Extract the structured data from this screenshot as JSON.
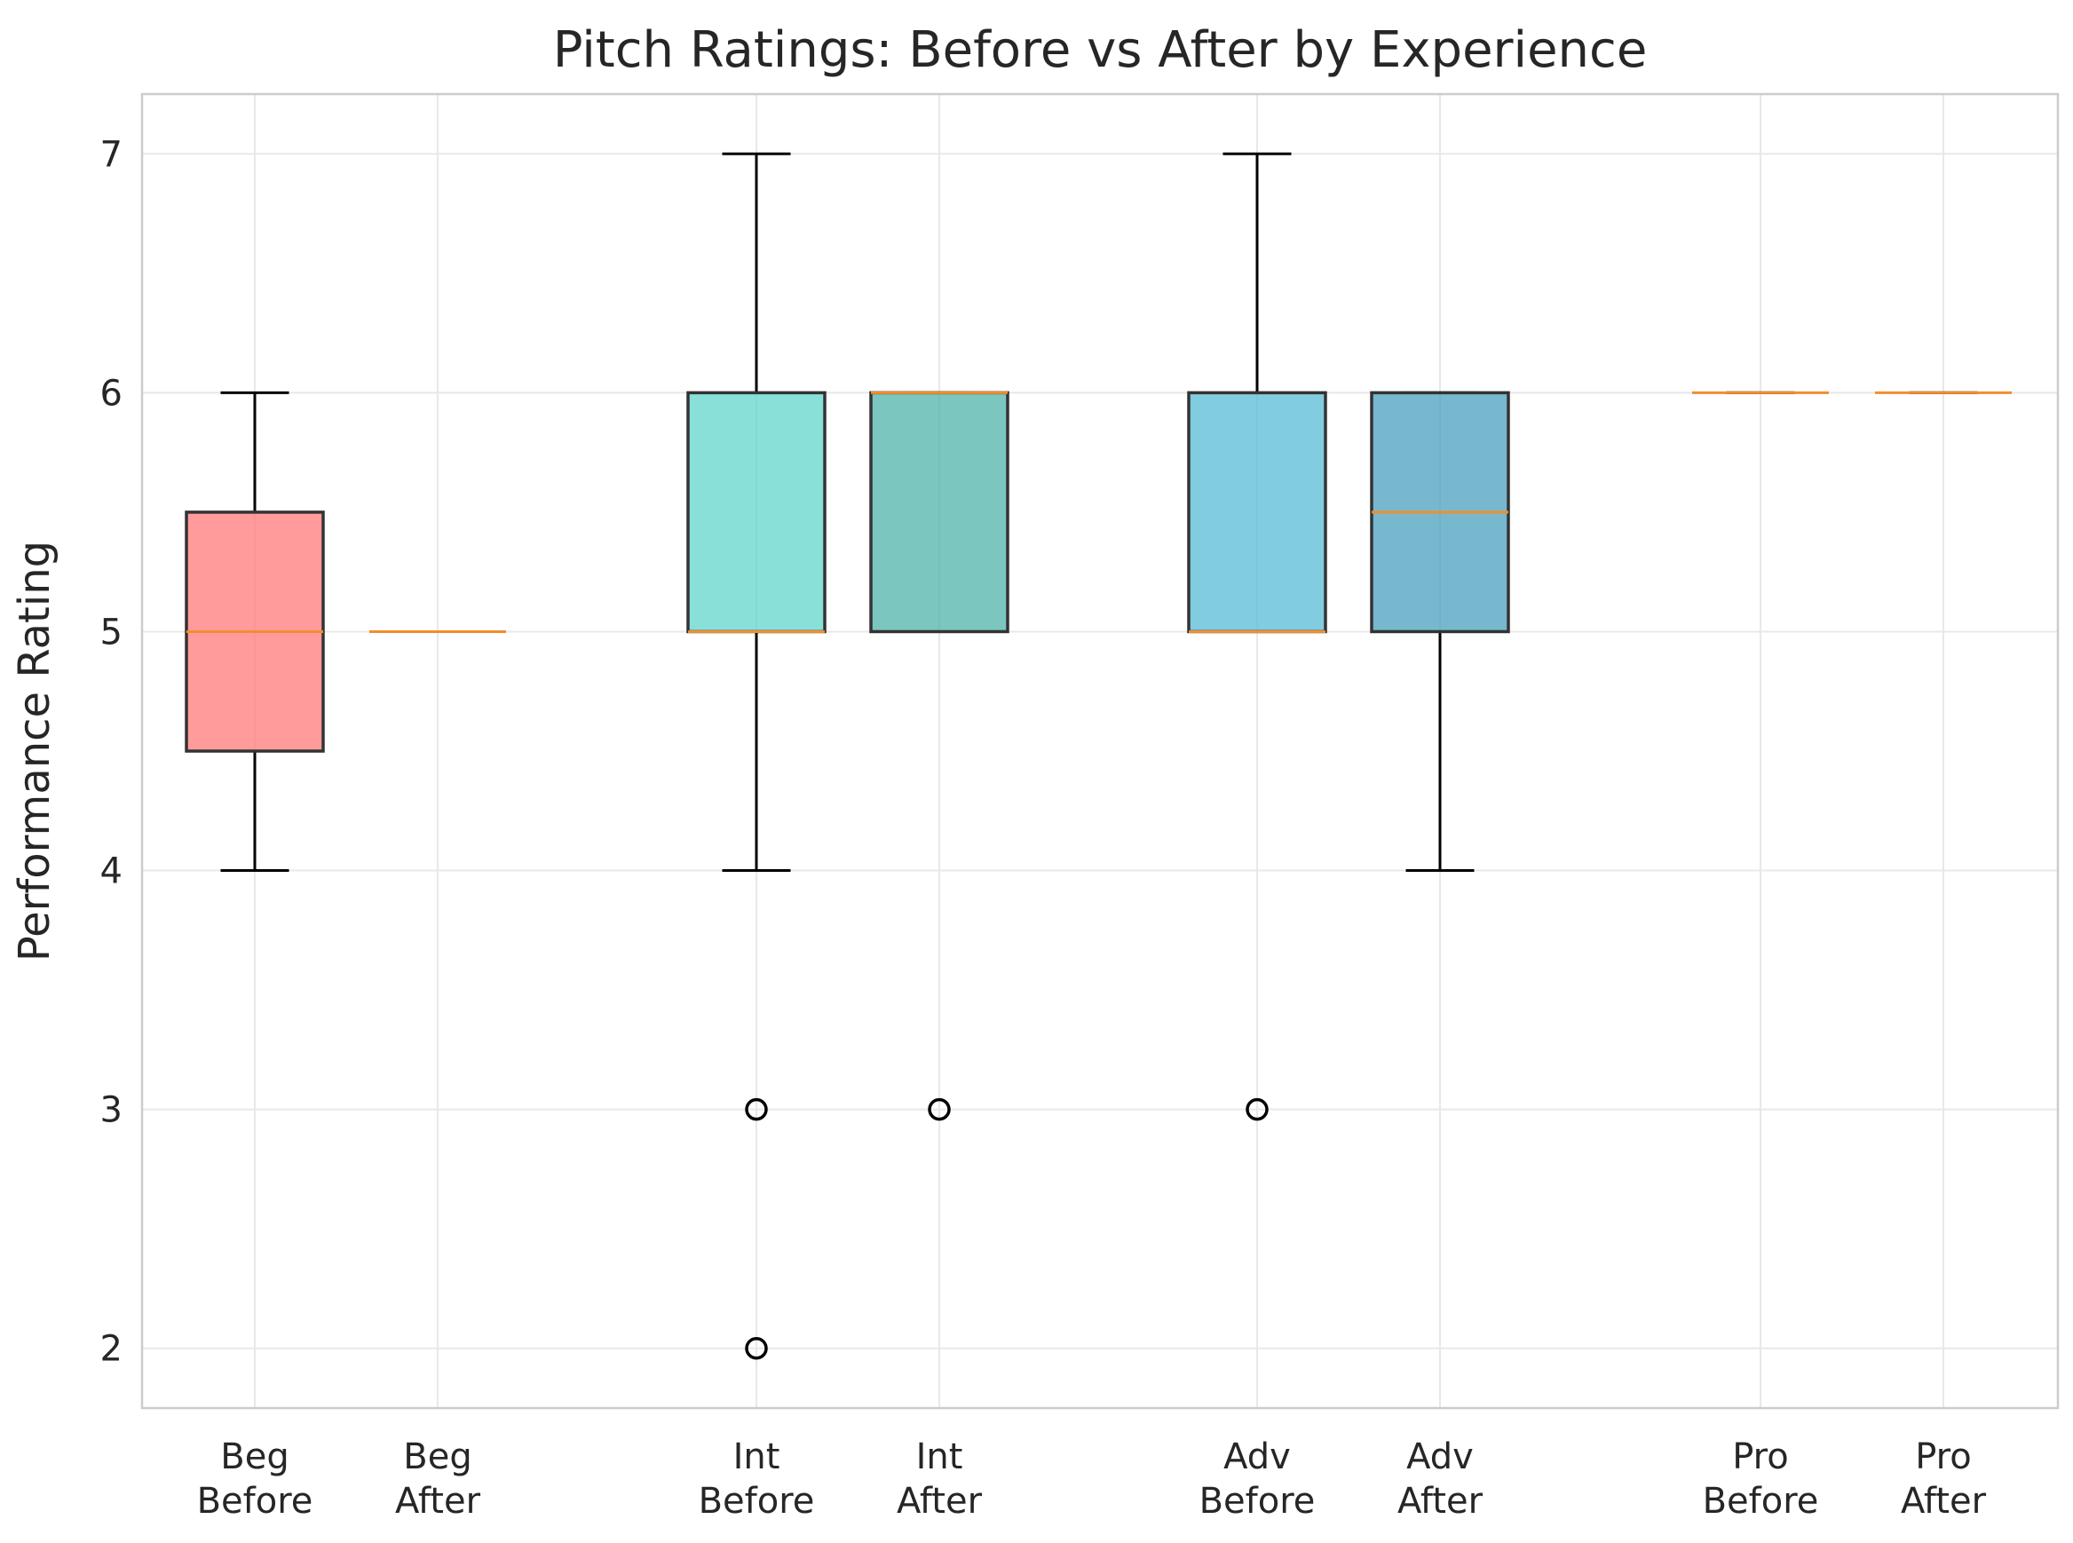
{
  "chart_data": {
    "type": "boxplot",
    "title": "Pitch Ratings: Before vs After by Experience",
    "ylabel": "Performance Rating",
    "xlabel": "",
    "ylim": [
      1.75,
      7.25
    ],
    "yticks": [
      2,
      3,
      4,
      5,
      6,
      7
    ],
    "grid": true,
    "legend": "none",
    "colors": {
      "median": "#f28e2b",
      "box_edge": "#333333",
      "grid": "#e8e8e8",
      "frame": "#cccccc"
    },
    "boxes": [
      {
        "label": [
          "Beg",
          "Before"
        ],
        "group": 0,
        "slot": 0,
        "color": "#ff7a7a",
        "whisker_low": 4,
        "q1": 4.5,
        "median": 5,
        "q3": 5.5,
        "whisker_high": 6,
        "outliers": []
      },
      {
        "label": [
          "Beg",
          "After"
        ],
        "group": 0,
        "slot": 1,
        "color": "#e85c5c",
        "whisker_low": 5,
        "q1": 5,
        "median": 5,
        "q3": 5,
        "whisker_high": 5,
        "outliers": []
      },
      {
        "label": [
          "Int",
          "Before"
        ],
        "group": 1,
        "slot": 0,
        "color": "#62d6cc",
        "whisker_low": 4,
        "q1": 5,
        "median": 5,
        "q3": 6,
        "whisker_high": 7,
        "outliers": [
          3,
          2
        ]
      },
      {
        "label": [
          "Int",
          "After"
        ],
        "group": 1,
        "slot": 1,
        "color": "#4fb3a9",
        "whisker_low": 5,
        "q1": 5,
        "median": 6,
        "q3": 6,
        "whisker_high": 6,
        "outliers": [
          3
        ]
      },
      {
        "label": [
          "Adv",
          "Before"
        ],
        "group": 2,
        "slot": 0,
        "color": "#58bbd6",
        "whisker_low": 5,
        "q1": 5,
        "median": 5,
        "q3": 6,
        "whisker_high": 7,
        "outliers": [
          3
        ]
      },
      {
        "label": [
          "Adv",
          "After"
        ],
        "group": 2,
        "slot": 1,
        "color": "#4aa0bd",
        "whisker_low": 4,
        "q1": 5,
        "median": 5.5,
        "q3": 6,
        "whisker_high": 6,
        "outliers": []
      },
      {
        "label": [
          "Pro",
          "Before"
        ],
        "group": 3,
        "slot": 0,
        "color": "#8fc9a8",
        "whisker_low": 6,
        "q1": 6,
        "median": 6,
        "q3": 6,
        "whisker_high": 6,
        "outliers": []
      },
      {
        "label": [
          "Pro",
          "After"
        ],
        "group": 3,
        "slot": 1,
        "color": "#7ab894",
        "whisker_low": 6,
        "q1": 6,
        "median": 6,
        "q3": 6,
        "whisker_high": 6,
        "outliers": []
      }
    ]
  }
}
